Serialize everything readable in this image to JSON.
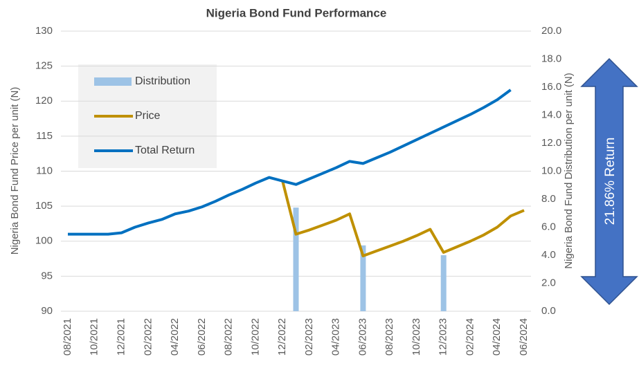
{
  "chart_data": {
    "type": "combo",
    "title": "Nigeria Bond Fund Performance",
    "y_label": "Nigeria Bond Fund Price per unit (N)",
    "y2_label": "Nigeria Bond Fund Distribution per unit (N)",
    "annotation": "21.86% Return",
    "categories": [
      "08/2021",
      null,
      "10/2021",
      null,
      "12/2021",
      null,
      "02/2022",
      null,
      "04/2022",
      null,
      "06/2022",
      null,
      "08/2022",
      null,
      "10/2022",
      null,
      "12/2022",
      null,
      "02/2023",
      null,
      "04/2023",
      null,
      "06/2023",
      null,
      "08/2023",
      null,
      "10/2023",
      null,
      "12/2023",
      null,
      "02/2024",
      null,
      "04/2024",
      null,
      "06/2024"
    ],
    "series": [
      {
        "name": "Distribution",
        "type": "bar",
        "axis": "y2",
        "color": "#9dc3e6",
        "values": [
          null,
          null,
          null,
          null,
          null,
          null,
          null,
          null,
          null,
          null,
          null,
          null,
          null,
          null,
          null,
          null,
          null,
          7.4,
          null,
          null,
          null,
          null,
          4.7,
          null,
          null,
          null,
          null,
          null,
          4.0,
          null,
          null,
          null,
          null,
          null,
          null
        ]
      },
      {
        "name": "Price",
        "type": "line",
        "color": "#bf9000",
        "values": [
          null,
          null,
          null,
          null,
          null,
          null,
          null,
          null,
          null,
          null,
          null,
          null,
          null,
          null,
          null,
          null,
          108.6,
          101,
          101.6,
          102.3,
          103,
          103.9,
          97.9,
          98.6,
          99.3,
          100,
          100.8,
          101.7,
          98.4,
          99.2,
          100,
          100.9,
          102,
          103.6,
          104.4
        ]
      },
      {
        "name": "Total Return",
        "type": "line",
        "color": "#0070c0",
        "values": [
          101,
          101,
          101,
          101,
          101.2,
          102,
          102.6,
          103.1,
          103.9,
          104.3,
          104.9,
          105.7,
          106.6,
          107.4,
          108.3,
          109.1,
          108.6,
          108.1,
          108.9,
          109.7,
          110.5,
          111.4,
          111.1,
          111.9,
          112.7,
          113.6,
          114.5,
          115.4,
          116.3,
          117.2,
          118.1,
          119.1,
          120.2,
          121.6,
          null
        ]
      }
    ],
    "ylim": [
      90,
      130
    ],
    "yticks": [
      90,
      95,
      100,
      105,
      110,
      115,
      120,
      125,
      130
    ],
    "y2lim": [
      0,
      20
    ],
    "y2ticks": [
      {
        "value": 0,
        "label": "0.0"
      },
      {
        "value": 2,
        "label": "2.0"
      },
      {
        "value": 4,
        "label": "4.0"
      },
      {
        "value": 6,
        "label": "6.0"
      },
      {
        "value": 8,
        "label": "8.0"
      },
      {
        "value": 10,
        "label": "10.0"
      },
      {
        "value": 12,
        "label": "12.0"
      },
      {
        "value": 14,
        "label": "14.0"
      },
      {
        "value": 16,
        "label": "16.0"
      },
      {
        "value": 18,
        "label": "18.0"
      },
      {
        "value": 20,
        "label": "20.0"
      }
    ],
    "grid": true,
    "legend": "upper left"
  }
}
